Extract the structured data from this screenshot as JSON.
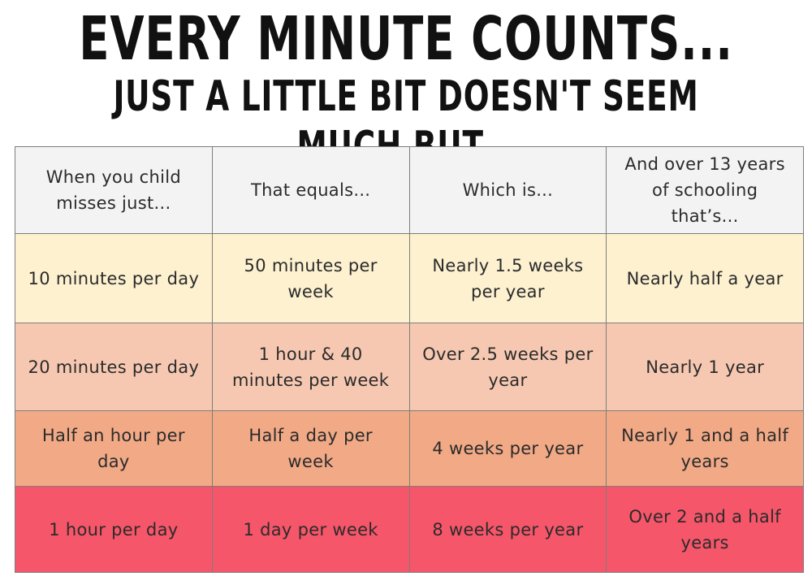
{
  "title": {
    "line1": "EVERY MINUTE COUNTS...",
    "line2": "JUST A LITTLE BIT DOESN'T SEEM MUCH BUT..."
  },
  "table": {
    "headers": [
      "When you child\nmisses just...",
      "That equals...",
      "Which is...",
      "And over 13 years\nof schooling\nthat’s..."
    ],
    "rows": [
      [
        "10 minutes per day",
        "50 minutes per\nweek",
        "Nearly 1.5 weeks\nper year",
        "Nearly half a year"
      ],
      [
        "20 minutes per day",
        "1 hour & 40\nminutes per week",
        "Over 2.5 weeks per\nyear",
        "Nearly 1 year"
      ],
      [
        "Half an hour per\nday",
        "Half a day per\nweek",
        "4 weeks per year",
        "Nearly 1 and a half\nyears"
      ],
      [
        "1 hour per day",
        "1 day per week",
        "8 weeks per year",
        "Over 2 and a half\nyears"
      ]
    ]
  },
  "colors": {
    "header_bg": "#f3f3f3",
    "row1_bg": "#fdf1d0",
    "row2_bg": "#f6c8b1",
    "row3_bg": "#f1a986",
    "row4_bg": "#f65669",
    "border": "#7d7d7d"
  }
}
